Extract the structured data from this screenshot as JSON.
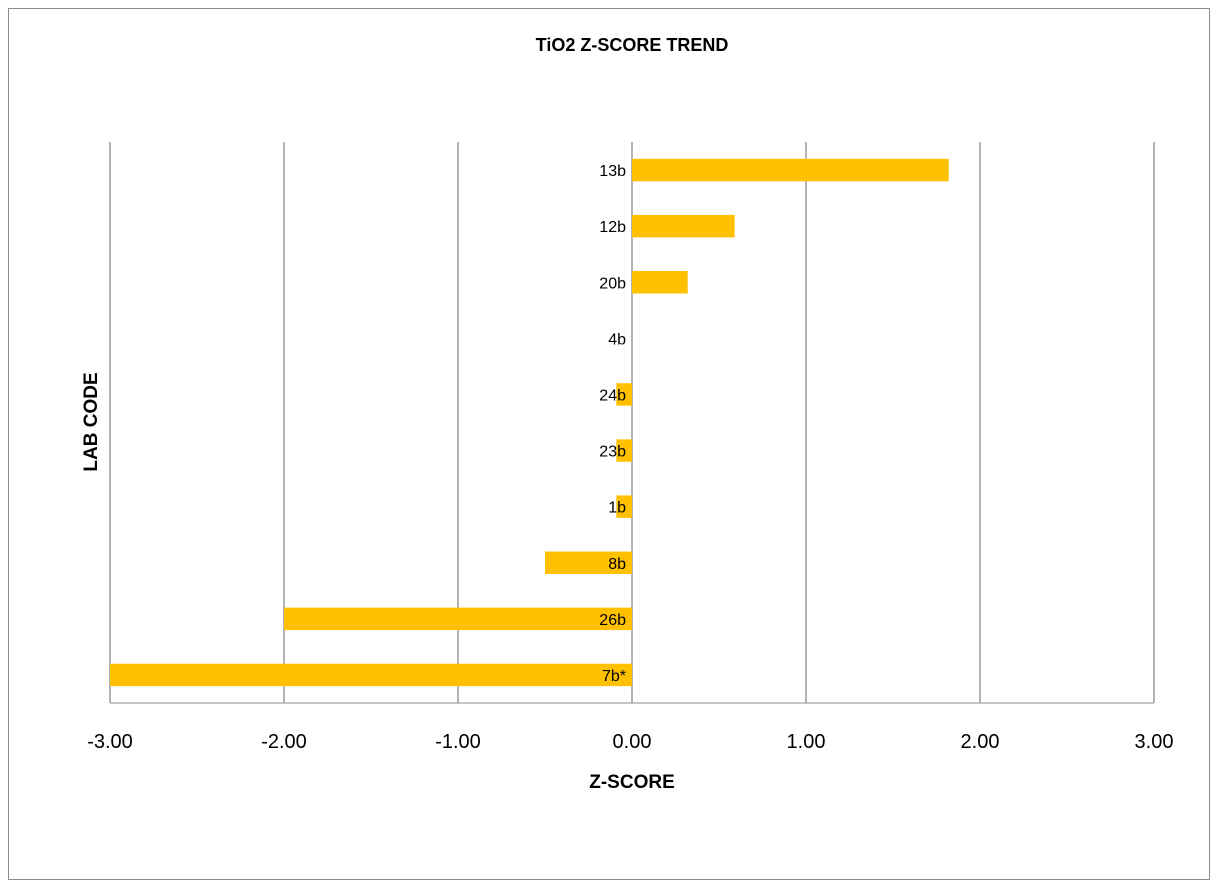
{
  "chart_data": {
    "type": "bar",
    "orientation": "horizontal",
    "title": "TiO2 Z-SCORE TREND",
    "xlabel": "Z-SCORE",
    "ylabel": "LAB CODE",
    "xlim": [
      -3,
      3
    ],
    "xticks": [
      "-3.00",
      "-2.00",
      "-1.00",
      "0.00",
      "1.00",
      "2.00",
      "3.00"
    ],
    "grid": "vertical",
    "bar_color": "#FFC000",
    "categories": [
      "13b",
      "12b",
      "20b",
      "4b",
      "24b",
      "23b",
      "1b",
      "8b",
      "26b",
      "7b*"
    ],
    "values": [
      1.82,
      0.59,
      0.32,
      0.0,
      -0.09,
      -0.09,
      -0.09,
      -0.5,
      -2.0,
      -3.0
    ]
  }
}
